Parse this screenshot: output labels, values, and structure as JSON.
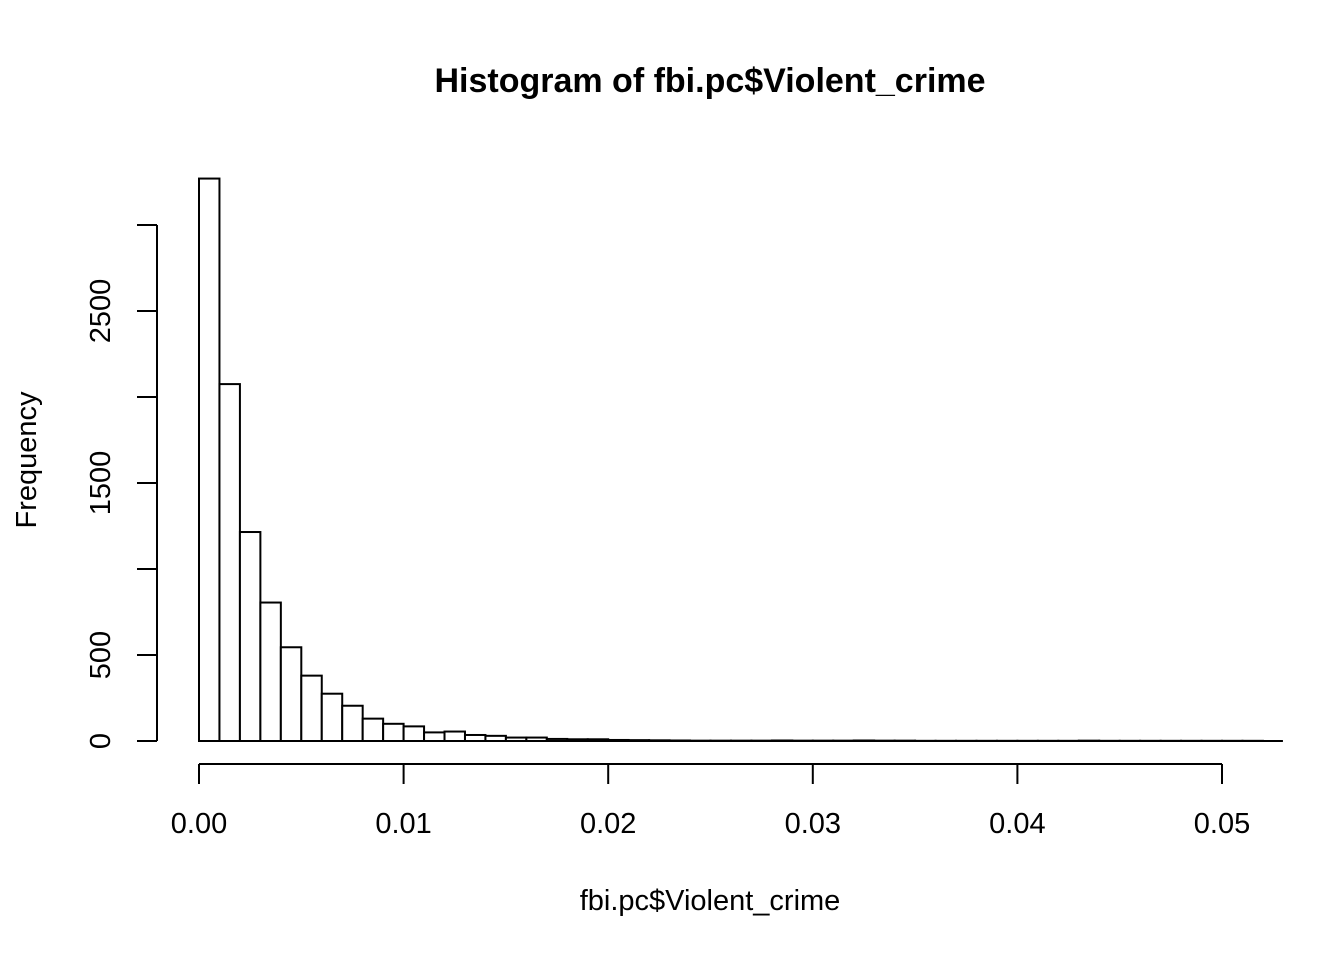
{
  "chart_data": {
    "type": "bar",
    "title": "Histogram of fbi.pc$Violent_crime",
    "xlabel": "fbi.pc$Violent_crime",
    "ylabel": "Frequency",
    "bin_width": 0.001,
    "bin_start": 0.0,
    "values": [
      3270,
      2075,
      1215,
      805,
      545,
      380,
      275,
      205,
      130,
      100,
      85,
      50,
      55,
      35,
      30,
      20,
      20,
      12,
      10,
      10,
      6,
      5,
      4,
      3,
      2,
      2,
      2,
      2,
      3,
      2,
      2,
      2,
      3,
      2,
      2,
      1,
      1,
      1,
      1,
      1,
      1,
      1,
      1,
      2,
      1,
      1,
      1,
      1,
      1,
      1,
      1,
      1
    ],
    "xlim": [
      0.0,
      0.052
    ],
    "ylim": [
      0,
      3000
    ],
    "x_ticks": [
      "0.00",
      "0.01",
      "0.02",
      "0.03",
      "0.04",
      "0.05"
    ],
    "x_tick_values": [
      0.0,
      0.01,
      0.02,
      0.03,
      0.04,
      0.05
    ],
    "y_ticks": [
      "0",
      "500",
      "1500",
      "2500"
    ],
    "y_tick_values": [
      0,
      500,
      1500,
      2500
    ],
    "y_minor_tick_values": [
      0,
      500,
      1000,
      1500,
      2000,
      2500,
      3000
    ],
    "grid": false,
    "legend": "none"
  }
}
